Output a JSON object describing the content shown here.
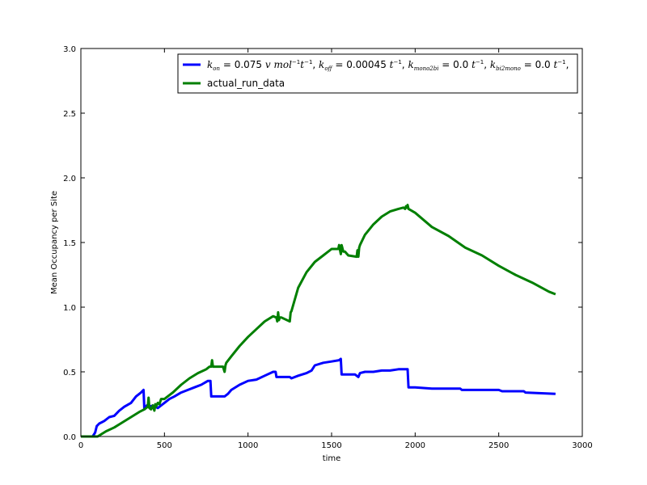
{
  "chart_data": {
    "type": "line",
    "xlabel": "time",
    "ylabel": "Mean Occupancy per Site",
    "xlim": [
      0,
      3000
    ],
    "ylim": [
      0,
      3.0
    ],
    "xticks": [
      "0",
      "500",
      "1000",
      "1500",
      "2000",
      "2500",
      "3000"
    ],
    "yticks": [
      "0.0",
      "0.5",
      "1.0",
      "1.5",
      "2.0",
      "2.5",
      "3.0"
    ],
    "grid": false,
    "legend_position": "top-right",
    "series": [
      {
        "name": "k_on = 0.075 v mol⁻¹t⁻¹, k_off = 0.00045 t⁻¹, k_mono2bi = 0.0 t⁻¹, k_bi2mono = 0.0 t⁻¹,",
        "color": "#0000ff",
        "x": [
          0,
          70,
          85,
          95,
          110,
          140,
          170,
          200,
          230,
          260,
          300,
          330,
          360,
          375,
          380,
          395,
          410,
          430,
          460,
          480,
          500,
          530,
          560,
          600,
          640,
          680,
          720,
          760,
          775,
          780,
          800,
          860,
          880,
          900,
          950,
          1000,
          1050,
          1100,
          1150,
          1165,
          1170,
          1250,
          1260,
          1300,
          1350,
          1380,
          1400,
          1450,
          1500,
          1545,
          1555,
          1560,
          1640,
          1660,
          1670,
          1700,
          1750,
          1800,
          1850,
          1900,
          1945,
          1955,
          1960,
          2000,
          2100,
          2270,
          2280,
          2500,
          2520,
          2650,
          2660,
          2840
        ],
        "y": [
          0.0,
          0.0,
          0.03,
          0.08,
          0.1,
          0.12,
          0.15,
          0.16,
          0.2,
          0.23,
          0.26,
          0.31,
          0.34,
          0.36,
          0.21,
          0.24,
          0.23,
          0.24,
          0.22,
          0.24,
          0.26,
          0.29,
          0.31,
          0.34,
          0.36,
          0.38,
          0.4,
          0.43,
          0.43,
          0.31,
          0.31,
          0.31,
          0.33,
          0.36,
          0.4,
          0.43,
          0.44,
          0.47,
          0.5,
          0.5,
          0.46,
          0.46,
          0.45,
          0.47,
          0.49,
          0.51,
          0.55,
          0.57,
          0.58,
          0.59,
          0.6,
          0.48,
          0.48,
          0.46,
          0.49,
          0.5,
          0.5,
          0.51,
          0.51,
          0.52,
          0.52,
          0.52,
          0.38,
          0.38,
          0.37,
          0.37,
          0.36,
          0.36,
          0.35,
          0.35,
          0.34,
          0.33
        ]
      },
      {
        "name": "actual_run_data",
        "color": "#007f00",
        "x": [
          0,
          100,
          150,
          200,
          250,
          300,
          350,
          380,
          400,
          405,
          410,
          420,
          430,
          440,
          445,
          450,
          460,
          470,
          480,
          500,
          550,
          600,
          650,
          700,
          750,
          770,
          780,
          785,
          790,
          800,
          850,
          860,
          865,
          870,
          900,
          950,
          1000,
          1050,
          1100,
          1150,
          1170,
          1175,
          1180,
          1185,
          1190,
          1200,
          1250,
          1255,
          1260,
          1300,
          1350,
          1400,
          1450,
          1500,
          1540,
          1545,
          1555,
          1560,
          1570,
          1580,
          1600,
          1650,
          1655,
          1660,
          1665,
          1670,
          1700,
          1750,
          1800,
          1850,
          1900,
          1930,
          1940,
          1945,
          1950,
          1955,
          1960,
          2000,
          2100,
          2200,
          2300,
          2400,
          2500,
          2600,
          2700,
          2800,
          2840
        ],
        "y": [
          0.0,
          0.0,
          0.04,
          0.07,
          0.11,
          0.15,
          0.19,
          0.21,
          0.23,
          0.3,
          0.22,
          0.21,
          0.24,
          0.2,
          0.25,
          0.23,
          0.26,
          0.25,
          0.29,
          0.29,
          0.34,
          0.4,
          0.45,
          0.49,
          0.52,
          0.54,
          0.54,
          0.59,
          0.54,
          0.54,
          0.54,
          0.5,
          0.55,
          0.57,
          0.62,
          0.7,
          0.77,
          0.83,
          0.89,
          0.93,
          0.92,
          0.89,
          0.96,
          0.9,
          0.92,
          0.92,
          0.89,
          0.96,
          0.97,
          1.15,
          1.27,
          1.35,
          1.4,
          1.45,
          1.45,
          1.48,
          1.41,
          1.48,
          1.43,
          1.43,
          1.4,
          1.39,
          1.44,
          1.39,
          1.46,
          1.48,
          1.56,
          1.64,
          1.7,
          1.74,
          1.76,
          1.77,
          1.76,
          1.78,
          1.77,
          1.79,
          1.76,
          1.73,
          1.62,
          1.55,
          1.46,
          1.4,
          1.32,
          1.25,
          1.19,
          1.12,
          1.1
        ]
      }
    ]
  }
}
